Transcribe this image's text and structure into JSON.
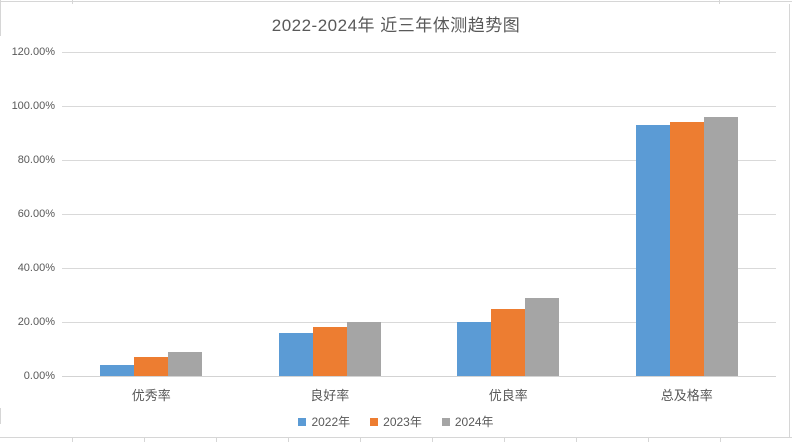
{
  "chart_data": {
    "type": "bar",
    "title": "2022-2024年 近三年体测趋势图",
    "categories": [
      "优秀率",
      "良好率",
      "优良率",
      "总及格率"
    ],
    "series": [
      {
        "name": "2022年",
        "color": "#5B9BD5",
        "values": [
          4,
          16,
          20,
          93
        ]
      },
      {
        "name": "2023年",
        "color": "#ED7D31",
        "values": [
          7,
          18,
          25,
          94
        ]
      },
      {
        "name": "2024年",
        "color": "#A5A5A5",
        "values": [
          9,
          20,
          29,
          96
        ]
      }
    ],
    "xlabel": "",
    "ylabel": "",
    "ylim": [
      0,
      120
    ],
    "yticks": [
      "0.00%",
      "20.00%",
      "40.00%",
      "60.00%",
      "80.00%",
      "100.00%",
      "120.00%"
    ],
    "grid": "horizontal",
    "legend_position": "bottom",
    "value_format": "percent"
  },
  "colors": {
    "gridline": "#d9d9d9",
    "text": "#595959",
    "background": "#ffffff",
    "sheet_line": "#d6d6d6"
  }
}
